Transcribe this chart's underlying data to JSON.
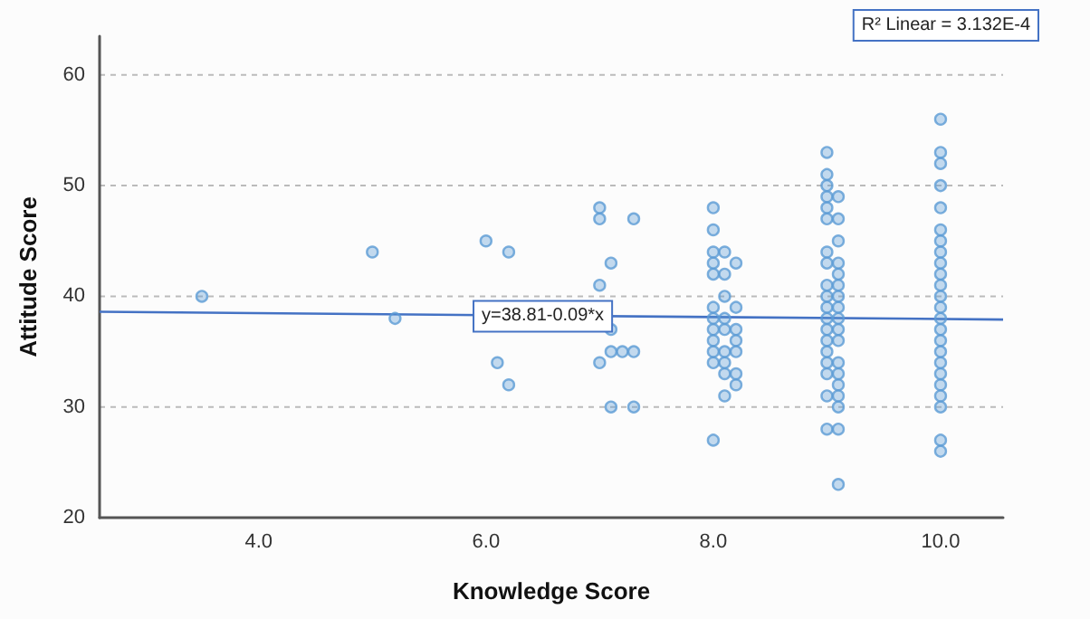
{
  "chart_data": {
    "type": "scatter",
    "xlabel": "Knowledge Score",
    "ylabel": "Attitude Score",
    "xlim": [
      2.6,
      10.55
    ],
    "ylim": [
      20,
      63.5
    ],
    "xticks": [
      {
        "value": 4,
        "label": "4.0"
      },
      {
        "value": 6,
        "label": "6.0"
      },
      {
        "value": 8,
        "label": "8.0"
      },
      {
        "value": 10,
        "label": "10.0"
      }
    ],
    "yticks": [
      20,
      30,
      40,
      50,
      60
    ],
    "grid": "y",
    "series": [
      {
        "marker": "circle",
        "color": "#5b9bd5",
        "x": [
          3.5,
          5,
          5.2,
          6,
          6.1,
          6.2,
          6.2,
          7,
          7,
          7,
          7,
          7.1,
          7.1,
          7.1,
          7.1,
          7.2,
          7.3,
          7.3,
          7.3,
          8,
          8,
          8,
          8,
          8,
          8,
          8,
          8,
          8,
          8,
          8,
          8,
          8.1,
          8.1,
          8.1,
          8.1,
          8.1,
          8.1,
          8.1,
          8.1,
          8.1,
          8.2,
          8.2,
          8.2,
          8.2,
          8.2,
          8.2,
          8.2,
          9,
          9,
          9,
          9,
          9,
          9,
          9,
          9,
          9,
          9,
          9,
          9,
          9,
          9,
          9,
          9,
          9,
          9,
          9,
          9.1,
          9.1,
          9.1,
          9.1,
          9.1,
          9.1,
          9.1,
          9.1,
          9.1,
          9.1,
          9.1,
          9.1,
          9.1,
          9.1,
          9.1,
          9.1,
          9.1,
          9.1,
          10,
          10,
          10,
          10,
          10,
          10,
          10,
          10,
          10,
          10,
          10,
          10,
          10,
          10,
          10,
          10,
          10,
          10,
          10,
          10,
          10,
          10,
          10,
          10
        ],
        "values": [
          40,
          44,
          38,
          45,
          34,
          44,
          32,
          48,
          47,
          41,
          34,
          43,
          37,
          35,
          30,
          35,
          47,
          35,
          30,
          48,
          46,
          44,
          43,
          42,
          39,
          38,
          37,
          36,
          35,
          34,
          27,
          44,
          42,
          40,
          38,
          37,
          35,
          34,
          33,
          31,
          43,
          39,
          37,
          36,
          35,
          33,
          32,
          53,
          51,
          50,
          49,
          48,
          47,
          44,
          43,
          41,
          40,
          39,
          38,
          37,
          36,
          35,
          34,
          33,
          31,
          28,
          49,
          47,
          45,
          43,
          42,
          41,
          40,
          39,
          38,
          37,
          36,
          34,
          33,
          32,
          31,
          30,
          28,
          23,
          56,
          53,
          52,
          50,
          48,
          46,
          45,
          44,
          43,
          42,
          41,
          40,
          39,
          38,
          37,
          36,
          35,
          34,
          33,
          32,
          31,
          30,
          27,
          26
        ]
      },
      {
        "type": "line",
        "color": "#4472c4",
        "x": [
          2.6,
          10.55
        ],
        "values": [
          38.6,
          37.9
        ]
      }
    ],
    "annotations": [
      {
        "text": "y=38.81-0.09*x",
        "x": 6.5,
        "y": 38.2
      },
      "R² Linear = 3.132E-4"
    ]
  }
}
